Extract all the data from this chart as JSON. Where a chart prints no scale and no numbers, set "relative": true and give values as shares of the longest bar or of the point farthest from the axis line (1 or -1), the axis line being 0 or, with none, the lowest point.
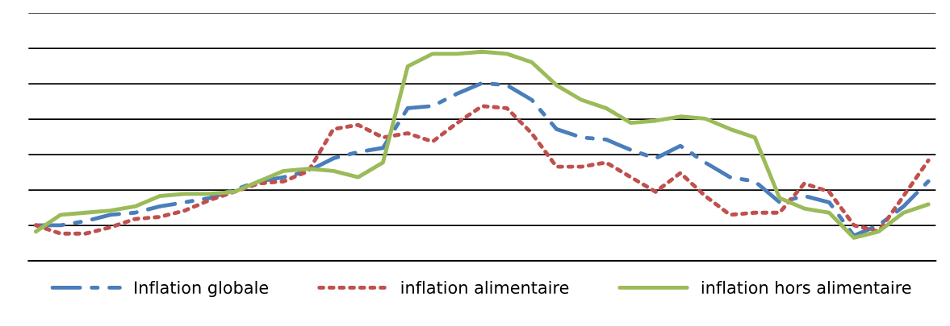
{
  "chart_data": {
    "type": "line",
    "relative": true,
    "grid": "y",
    "legend": "bottom",
    "marker": "none",
    "categories": [
      null,
      null,
      null,
      null,
      null,
      null,
      null,
      null,
      null,
      null,
      null,
      null,
      null,
      null,
      null,
      null,
      null,
      null,
      null,
      null,
      null,
      null,
      null,
      null,
      null,
      null,
      null,
      null,
      null,
      null,
      null,
      null,
      null,
      null,
      null,
      null,
      null
    ],
    "series": [
      {
        "name": "Inflation globale",
        "color": "#4a7ebb",
        "line_style": "dashed",
        "values": [
          0.17,
          0.17,
          0.19,
          0.22,
          0.23,
          0.26,
          0.28,
          0.3,
          0.34,
          0.38,
          0.4,
          0.43,
          0.49,
          0.52,
          0.54,
          0.73,
          0.74,
          0.8,
          0.85,
          0.84,
          0.77,
          0.63,
          0.59,
          0.58,
          0.53,
          0.49,
          0.55,
          0.47,
          0.4,
          0.38,
          0.28,
          0.31,
          0.28,
          0.12,
          0.17,
          0.26,
          0.38
        ]
      },
      {
        "name": "inflation alimentaire",
        "color": "#c0504d",
        "line_style": "dotted",
        "values": [
          0.17,
          0.13,
          0.13,
          0.16,
          0.2,
          0.21,
          0.24,
          0.29,
          0.33,
          0.37,
          0.38,
          0.43,
          0.63,
          0.65,
          0.59,
          0.61,
          0.57,
          0.66,
          0.74,
          0.73,
          0.61,
          0.45,
          0.45,
          0.47,
          0.4,
          0.33,
          0.42,
          0.31,
          0.22,
          0.23,
          0.23,
          0.37,
          0.33,
          0.17,
          0.14,
          0.31,
          0.48
        ]
      },
      {
        "name": "inflation hors alimentaire",
        "color": "#9bbb59",
        "line_style": "solid",
        "values": [
          0.14,
          0.22,
          0.23,
          0.24,
          0.26,
          0.31,
          0.32,
          0.32,
          0.33,
          0.38,
          0.43,
          0.44,
          0.43,
          0.4,
          0.47,
          0.93,
          0.99,
          0.99,
          1.0,
          0.99,
          0.95,
          0.84,
          0.77,
          0.73,
          0.66,
          0.67,
          0.69,
          0.68,
          0.63,
          0.59,
          0.3,
          0.25,
          0.23,
          0.11,
          0.14,
          0.23,
          0.27
        ]
      }
    ]
  }
}
